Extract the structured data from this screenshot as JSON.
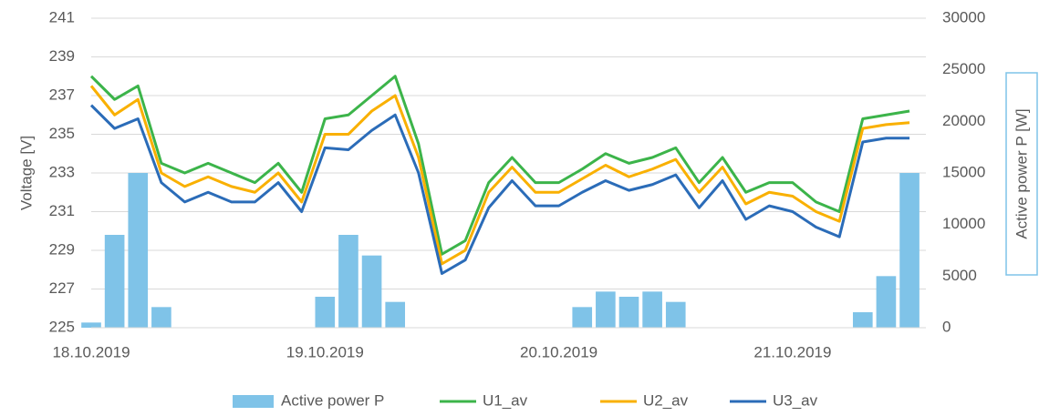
{
  "chart_data": {
    "type": "line",
    "y_label": "Voltage [V]",
    "y2_label": "Active power P [W]",
    "x": [
      0,
      0.1,
      0.2,
      0.3,
      0.4,
      0.5,
      0.6,
      0.7,
      0.8,
      0.9,
      1.0,
      1.1,
      1.2,
      1.3,
      1.4,
      1.5,
      1.6,
      1.7,
      1.8,
      1.9,
      2.0,
      2.1,
      2.2,
      2.3,
      2.4,
      2.5,
      2.6,
      2.7,
      2.8,
      2.9,
      3.0,
      3.1,
      3.2,
      3.3,
      3.4,
      3.5
    ],
    "xlim": [
      0,
      3.57
    ],
    "xticks": [
      {
        "value": 0,
        "label": "18.10.2019"
      },
      {
        "value": 1,
        "label": "19.10.2019"
      },
      {
        "value": 2,
        "label": "20.10.2019"
      },
      {
        "value": 3,
        "label": "21.10.2019"
      }
    ],
    "ylim": [
      225,
      241
    ],
    "yticks": [
      225,
      227,
      229,
      231,
      233,
      235,
      237,
      239,
      241
    ],
    "y2lim": [
      0,
      30000
    ],
    "y2ticks": [
      0,
      5000,
      10000,
      15000,
      20000,
      25000,
      30000
    ],
    "grid": true,
    "legend": "bottom",
    "series": [
      {
        "name": "Active power P",
        "type": "bar",
        "axis": "y2",
        "color": "#7fc3e8",
        "values": [
          500,
          9000,
          15000,
          2000,
          0,
          0,
          0,
          0,
          0,
          0,
          3000,
          9000,
          7000,
          2500,
          0,
          0,
          0,
          0,
          0,
          0,
          0,
          2000,
          3500,
          3000,
          3500,
          2500,
          0,
          0,
          0,
          0,
          0,
          0,
          0,
          1500,
          5000,
          15000
        ]
      },
      {
        "name": "U1_av",
        "color": "#3cb44a",
        "values": [
          238,
          236.8,
          237.5,
          233.5,
          233,
          233.5,
          233,
          232.5,
          233.5,
          232,
          235.8,
          236,
          237,
          238,
          234.5,
          228.8,
          229.5,
          232.5,
          233.8,
          232.5,
          232.5,
          233.2,
          234,
          233.5,
          233.8,
          234.3,
          232.5,
          233.8,
          232,
          232.5,
          232.5,
          231.5,
          231,
          235.8,
          236,
          236.2
        ]
      },
      {
        "name": "U2_av",
        "color": "#f9b000",
        "values": [
          237.5,
          236,
          236.8,
          233,
          232.3,
          232.8,
          232.3,
          232,
          233,
          231.5,
          235,
          235,
          236.2,
          237,
          233.8,
          228.3,
          229,
          232,
          233.3,
          232,
          232,
          232.7,
          233.4,
          232.8,
          233.2,
          233.7,
          232,
          233.3,
          231.4,
          232,
          231.8,
          231,
          230.5,
          235.3,
          235.5,
          235.6
        ]
      },
      {
        "name": "U3_av",
        "color": "#2b6cb8",
        "values": [
          236.5,
          235.3,
          235.8,
          232.5,
          231.5,
          232,
          231.5,
          231.5,
          232.5,
          231,
          234.3,
          234.2,
          235.2,
          236,
          233,
          227.8,
          228.5,
          231.2,
          232.6,
          231.3,
          231.3,
          232,
          232.6,
          232.1,
          232.4,
          232.9,
          231.2,
          232.6,
          230.6,
          231.3,
          231,
          230.2,
          229.7,
          234.6,
          234.8,
          234.8
        ]
      }
    ]
  }
}
